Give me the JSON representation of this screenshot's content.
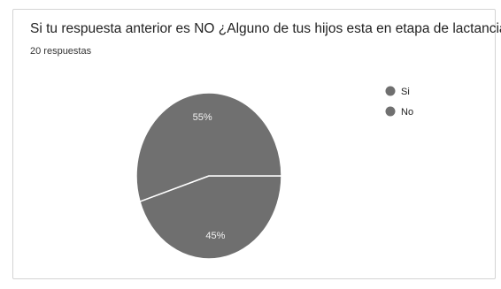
{
  "question": {
    "title": "Si tu respuesta anterior es NO ¿Alguno de tus hijos esta en etapa de lactancia?",
    "response_count": "20 respuestas"
  },
  "chart_data": {
    "type": "pie",
    "title": "Si tu respuesta anterior es NO ¿Alguno de tus hijos esta en etapa de lactancia?",
    "subtitle": "20 respuestas",
    "slices": [
      {
        "label": "Si",
        "value": 45,
        "display": "45%",
        "color": "#6f6f6f"
      },
      {
        "label": "No",
        "value": 55,
        "display": "55%",
        "color": "#707070"
      }
    ],
    "legend_position": "right",
    "grid": false
  }
}
